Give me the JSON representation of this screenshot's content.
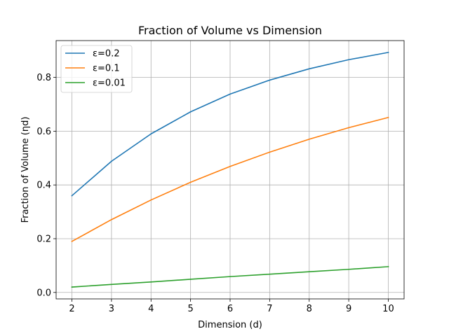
{
  "chart_data": {
    "type": "line",
    "title": "Fraction of Volume vs Dimension",
    "xlabel": "Dimension (d)",
    "ylabel": "Fraction of Volume (ηd)",
    "x": [
      2,
      3,
      4,
      5,
      6,
      7,
      8,
      9,
      10
    ],
    "xticks": [
      "2",
      "3",
      "4",
      "5",
      "6",
      "7",
      "8",
      "9",
      "10"
    ],
    "yticks": [
      "0.0",
      "0.2",
      "0.4",
      "0.6",
      "0.8"
    ],
    "xlim": [
      1.6,
      10.4
    ],
    "ylim": [
      -0.024,
      0.937
    ],
    "grid": true,
    "legend_position": "top-left",
    "series": [
      {
        "name": "ε=0.2",
        "color": "#1f77b4",
        "values": [
          0.36,
          0.488,
          0.59,
          0.672,
          0.738,
          0.79,
          0.832,
          0.866,
          0.893
        ]
      },
      {
        "name": "ε=0.1",
        "color": "#ff7f0e",
        "values": [
          0.19,
          0.271,
          0.344,
          0.41,
          0.469,
          0.522,
          0.57,
          0.613,
          0.651
        ]
      },
      {
        "name": "ε=0.01",
        "color": "#2ca02c",
        "values": [
          0.02,
          0.03,
          0.039,
          0.049,
          0.059,
          0.068,
          0.077,
          0.086,
          0.096
        ]
      }
    ]
  }
}
